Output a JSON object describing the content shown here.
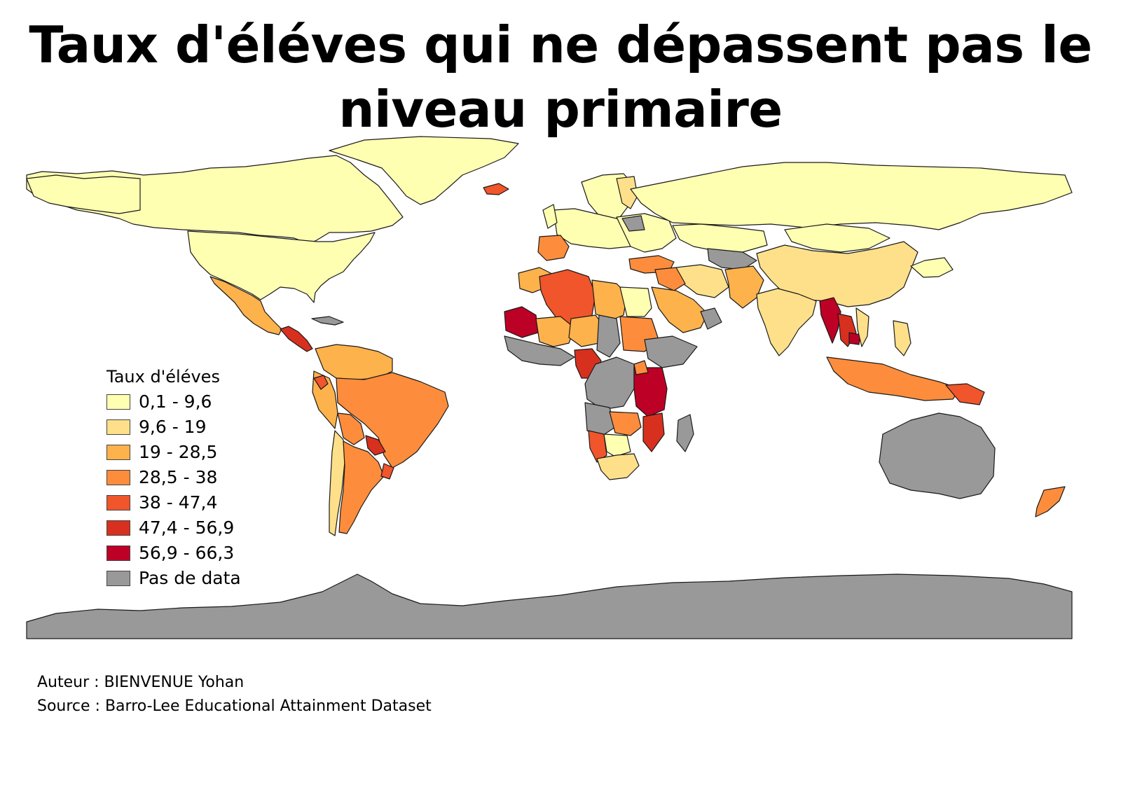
{
  "title": "Taux d'éléves qui ne dépassent pas le niveau primaire",
  "legend": {
    "title": "Taux d'éléves",
    "classes": [
      {
        "label": "0,1 - 9,6",
        "color": "#ffffb2"
      },
      {
        "label": "9,6 - 19",
        "color": "#fee08a"
      },
      {
        "label": "19 - 28,5",
        "color": "#feb24c"
      },
      {
        "label": "28,5 - 38",
        "color": "#fd8d3c"
      },
      {
        "label": "38 - 47,4",
        "color": "#f0552b"
      },
      {
        "label": "47,4 - 56,9",
        "color": "#d7301f"
      },
      {
        "label": "56,9 - 66,3",
        "color": "#bd0026"
      },
      {
        "label": "Pas de data",
        "color": "#999999"
      }
    ]
  },
  "credits": {
    "author": "Auteur : BIENVENUE Yohan",
    "source": "Source : Barro-Lee Educational Attainment Dataset"
  }
}
